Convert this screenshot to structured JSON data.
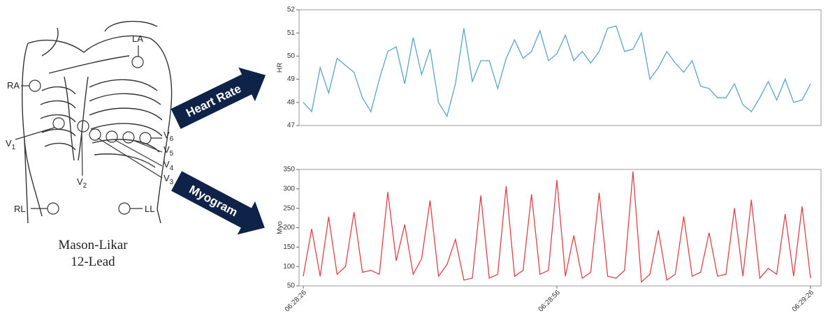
{
  "diagram": {
    "electrodes": [
      {
        "letter": "RA"
      },
      {
        "letter": "LA"
      },
      {
        "letter": "V",
        "sub": "1"
      },
      {
        "letter": "V",
        "sub": "2"
      },
      {
        "letter": "V",
        "sub": "3"
      },
      {
        "letter": "V",
        "sub": "4"
      },
      {
        "letter": "V",
        "sub": "5"
      },
      {
        "letter": "V",
        "sub": "6"
      },
      {
        "letter": "RL"
      },
      {
        "letter": "LL"
      }
    ],
    "caption": [
      "Mason-Likar",
      "12-Lead"
    ],
    "arrows": [
      "Heart Rate",
      "Myogram"
    ]
  },
  "chart_data": [
    {
      "type": "line",
      "ylabel": "HR",
      "color": "#5aa5c8",
      "x": [
        "06:28:26",
        "06:28:27",
        "06:28:28",
        "06:28:29",
        "06:28:30",
        "06:28:31",
        "06:28:32",
        "06:28:33",
        "06:28:34",
        "06:28:35",
        "06:28:36",
        "06:28:37",
        "06:28:38",
        "06:28:39",
        "06:28:40",
        "06:28:41",
        "06:28:42",
        "06:28:43",
        "06:28:44",
        "06:28:45",
        "06:28:46",
        "06:28:47",
        "06:28:48",
        "06:28:49",
        "06:28:50",
        "06:28:51",
        "06:28:52",
        "06:28:53",
        "06:28:54",
        "06:28:55",
        "06:28:56",
        "06:28:57",
        "06:28:58",
        "06:28:59",
        "06:29:00",
        "06:29:01",
        "06:29:02",
        "06:29:03",
        "06:29:04",
        "06:29:05",
        "06:29:06",
        "06:29:07",
        "06:29:08",
        "06:29:09",
        "06:29:10",
        "06:29:11",
        "06:29:12",
        "06:29:13",
        "06:29:14",
        "06:29:15",
        "06:29:16",
        "06:29:17",
        "06:29:18",
        "06:29:19",
        "06:29:20",
        "06:29:21",
        "06:29:22",
        "06:29:23",
        "06:29:24",
        "06:29:25",
        "06:29:26"
      ],
      "values": [
        48.0,
        47.6,
        49.5,
        48.4,
        49.9,
        49.6,
        49.3,
        48.2,
        47.6,
        49.0,
        50.2,
        50.4,
        48.8,
        50.8,
        49.2,
        50.3,
        48.0,
        47.4,
        48.8,
        51.2,
        48.9,
        49.8,
        49.8,
        48.6,
        49.9,
        50.7,
        49.9,
        50.2,
        51.1,
        49.8,
        50.1,
        50.9,
        49.8,
        50.2,
        49.7,
        50.2,
        51.2,
        51.3,
        50.2,
        50.3,
        51.0,
        49.0,
        49.5,
        50.2,
        49.7,
        49.3,
        49.8,
        48.7,
        48.6,
        48.2,
        48.2,
        48.8,
        47.9,
        47.6,
        48.2,
        48.9,
        48.1,
        49.0,
        48.0,
        48.1,
        48.8
      ],
      "ylim": [
        47,
        52
      ],
      "yticks": [
        47,
        48,
        49,
        50,
        51,
        52
      ]
    },
    {
      "type": "line",
      "ylabel": "Myo",
      "color": "#d9434b",
      "x": [
        "06:28:26",
        "06:28:27",
        "06:28:28",
        "06:28:29",
        "06:28:30",
        "06:28:31",
        "06:28:32",
        "06:28:33",
        "06:28:34",
        "06:28:35",
        "06:28:36",
        "06:28:37",
        "06:28:38",
        "06:28:39",
        "06:28:40",
        "06:28:41",
        "06:28:42",
        "06:28:43",
        "06:28:44",
        "06:28:45",
        "06:28:46",
        "06:28:47",
        "06:28:48",
        "06:28:49",
        "06:28:50",
        "06:28:51",
        "06:28:52",
        "06:28:53",
        "06:28:54",
        "06:28:55",
        "06:28:56",
        "06:28:57",
        "06:28:58",
        "06:28:59",
        "06:29:00",
        "06:29:01",
        "06:29:02",
        "06:29:03",
        "06:29:04",
        "06:29:05",
        "06:29:06",
        "06:29:07",
        "06:29:08",
        "06:29:09",
        "06:29:10",
        "06:29:11",
        "06:29:12",
        "06:29:13",
        "06:29:14",
        "06:29:15",
        "06:29:16",
        "06:29:17",
        "06:29:18",
        "06:29:19",
        "06:29:20",
        "06:29:21",
        "06:29:22",
        "06:29:23",
        "06:29:24",
        "06:29:25",
        "06:29:26"
      ],
      "values": [
        75,
        197,
        75,
        228,
        80,
        100,
        240,
        85,
        90,
        80,
        292,
        115,
        208,
        80,
        120,
        270,
        75,
        105,
        170,
        65,
        70,
        283,
        70,
        80,
        307,
        75,
        90,
        286,
        80,
        90,
        323,
        75,
        180,
        70,
        85,
        290,
        75,
        70,
        90,
        345,
        60,
        80,
        193,
        65,
        80,
        229,
        75,
        85,
        187,
        75,
        80,
        250,
        75,
        272,
        70,
        95,
        80,
        235,
        75,
        255,
        70
      ],
      "ylim": [
        50,
        350
      ],
      "yticks": [
        50,
        100,
        150,
        200,
        250,
        300,
        350
      ],
      "xticks": [
        "06:28:26",
        "06:28:56",
        "06:29:26"
      ]
    }
  ]
}
